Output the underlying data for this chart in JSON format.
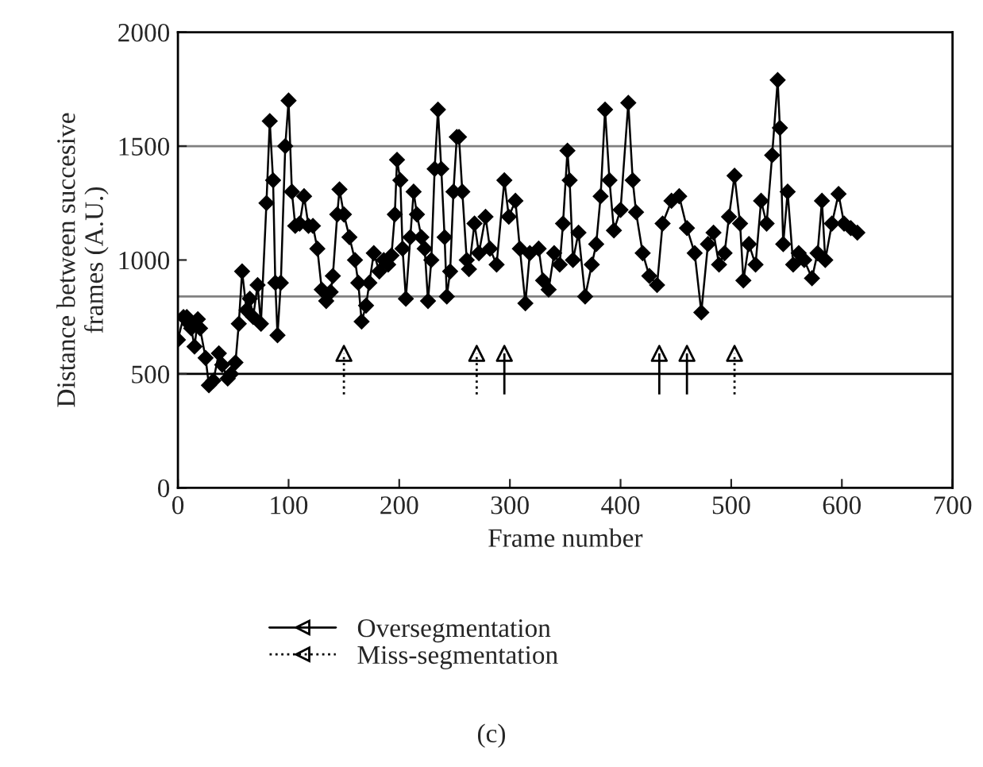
{
  "chart_data": {
    "type": "line",
    "xlabel": "Frame number",
    "ylabel": "Distance between succesive\nframes (A.U.)",
    "xlim": [
      0,
      700
    ],
    "xticks": [
      0,
      100,
      200,
      300,
      400,
      500,
      600,
      700
    ],
    "ylim": [
      0,
      2000
    ],
    "yticks": [
      0,
      500,
      1000,
      1500,
      2000
    ],
    "grid": false,
    "legend": "bottom left",
    "marker": "diamond",
    "line_style": "solid",
    "ref_lines": [
      {
        "axis": "y",
        "value": 500,
        "color": "#000000"
      },
      {
        "axis": "y",
        "value": 840,
        "color": "#808080"
      },
      {
        "axis": "y",
        "value": 1500,
        "color": "#808080"
      }
    ],
    "annotations": [
      "(c)"
    ],
    "series": [
      {
        "color": "#000000",
        "x": [
          0,
          5,
          8,
          10,
          12,
          15,
          18,
          20,
          25,
          28,
          32,
          37,
          40,
          45,
          48,
          52,
          55,
          58,
          62,
          65,
          68,
          72,
          75,
          80,
          83,
          86,
          88,
          90,
          93,
          97,
          100,
          103,
          106,
          110,
          114,
          118,
          122,
          126,
          130,
          134,
          138,
          140,
          144,
          146,
          150,
          155,
          160,
          163,
          166,
          170,
          173,
          177,
          182,
          186,
          190,
          193,
          196,
          198,
          201,
          203,
          206,
          210,
          213,
          216,
          220,
          223,
          226,
          229,
          232,
          235,
          238,
          241,
          243,
          246,
          249,
          252,
          254,
          257,
          261,
          263,
          268,
          272,
          278,
          282,
          288,
          295,
          299,
          305,
          309,
          314,
          318,
          326,
          330,
          335,
          340,
          345,
          348,
          352,
          354,
          357,
          362,
          368,
          374,
          378,
          382,
          386,
          390,
          394,
          400,
          407,
          411,
          414,
          420,
          426,
          433,
          438,
          446,
          453,
          460,
          467,
          473,
          479,
          484,
          489,
          494,
          498,
          503,
          508,
          511,
          516,
          522,
          527,
          532,
          537,
          542,
          544,
          547,
          551,
          556,
          561,
          566,
          573,
          578,
          582,
          585,
          591,
          597,
          602,
          608,
          614
        ],
        "values": [
          650,
          750,
          750,
          720,
          700,
          620,
          740,
          700,
          570,
          450,
          470,
          590,
          540,
          480,
          500,
          550,
          720,
          950,
          780,
          830,
          750,
          890,
          720,
          1250,
          1610,
          1350,
          900,
          670,
          900,
          1500,
          1700,
          1300,
          1150,
          1160,
          1280,
          1150,
          1150,
          1050,
          870,
          820,
          860,
          930,
          1200,
          1310,
          1200,
          1100,
          1000,
          900,
          730,
          800,
          900,
          1030,
          950,
          1000,
          980,
          1020,
          1200,
          1440,
          1350,
          1050,
          830,
          1100,
          1300,
          1200,
          1100,
          1050,
          820,
          1000,
          1400,
          1660,
          1400,
          1100,
          840,
          950,
          1300,
          1540,
          1540,
          1300,
          1000,
          960,
          1160,
          1030,
          1190,
          1050,
          980,
          1350,
          1190,
          1260,
          1050,
          810,
          1030,
          1050,
          910,
          870,
          1030,
          980,
          1160,
          1480,
          1350,
          1000,
          1120,
          840,
          980,
          1070,
          1280,
          1660,
          1350,
          1130,
          1220,
          1690,
          1350,
          1210,
          1030,
          930,
          890,
          1160,
          1260,
          1280,
          1140,
          1030,
          770,
          1070,
          1120,
          980,
          1030,
          1190,
          1370,
          1160,
          910,
          1070,
          980,
          1260,
          1160,
          1460,
          1790,
          1580,
          1070,
          1300,
          980,
          1030,
          1000,
          920,
          1030,
          1260,
          1000,
          1160,
          1290,
          1160,
          1140,
          1120
        ]
      },
      {
        "type": "scatter",
        "name": "Oversegmentation",
        "color": "#000000",
        "marker": "triangle",
        "line_style": "solid",
        "x": [
          295,
          435,
          460
        ],
        "values": [
          590,
          590,
          590
        ],
        "errors": [
          [
            410,
            590
          ],
          [
            410,
            590
          ],
          [
            410,
            590
          ]
        ]
      },
      {
        "type": "scatter",
        "name": "Miss-segmentation",
        "color": "#000000",
        "marker": "triangle",
        "line_style": "dotted",
        "x": [
          150,
          270,
          503
        ],
        "values": [
          590,
          590,
          590
        ],
        "errors": [
          [
            410,
            590
          ],
          [
            410,
            590
          ],
          [
            410,
            590
          ]
        ]
      }
    ]
  }
}
